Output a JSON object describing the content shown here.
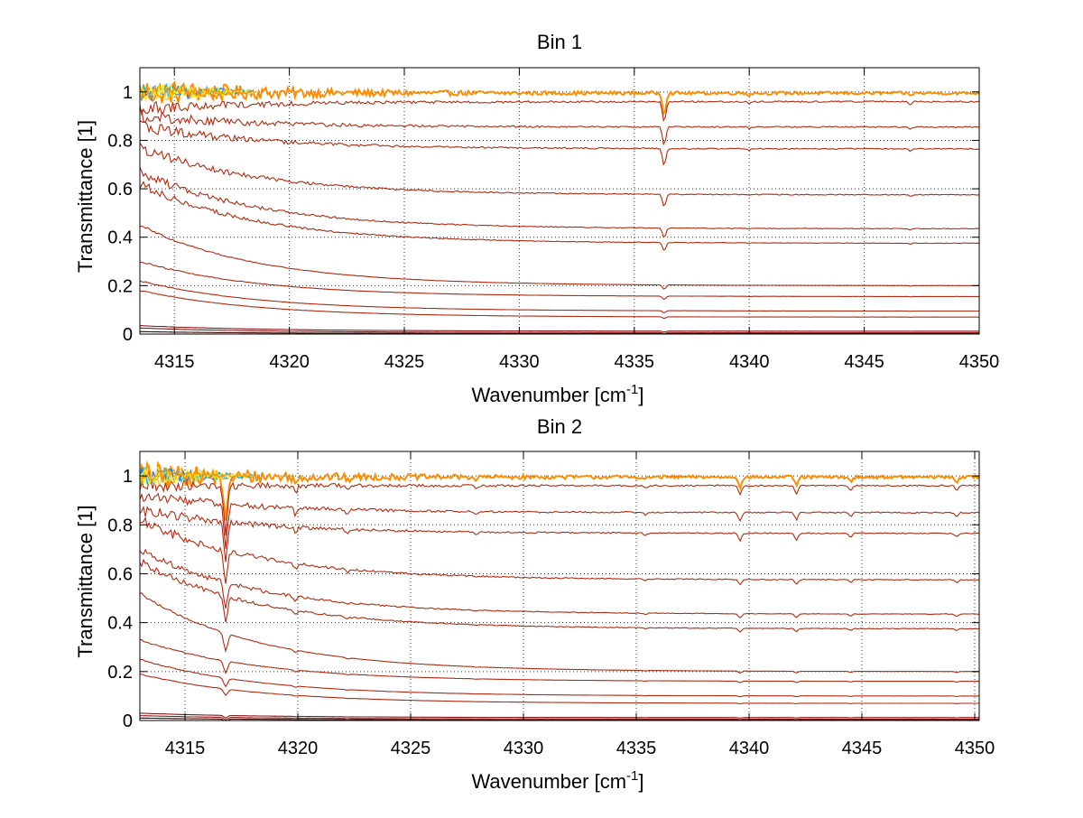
{
  "chart_data": [
    {
      "type": "line",
      "title": "Bin 1",
      "xlabel": "Wavenumber [cm",
      "xlabel_sup": "-1",
      "xlabel_end": "]",
      "ylabel": "Transmittance [1]",
      "xlim": [
        4313.5,
        4350
      ],
      "ylim": [
        0,
        1.1
      ],
      "xticks": [
        4315,
        4320,
        4325,
        4330,
        4335,
        4340,
        4345,
        4350
      ],
      "xtick_labels": [
        "4315",
        "4320",
        "4325",
        "4330",
        "4335",
        "4340",
        "4345",
        "4350"
      ],
      "yticks": [
        0,
        0.2,
        0.4,
        0.6,
        0.8,
        1
      ],
      "ytick_labels": [
        "0",
        "0.2",
        "0.4",
        "0.6",
        "0.8",
        "1"
      ],
      "grid": true,
      "dips": [
        {
          "x": 4336.3,
          "depth": 0.09,
          "width": 0.1
        },
        {
          "x": 4347.0,
          "depth": 0.012,
          "width": 0.08
        },
        {
          "x": 4340.0,
          "depth": 0.008,
          "width": 0.08
        }
      ],
      "series_levels": [
        {
          "start": 1.0,
          "end": 0.995,
          "color": "#ff8c00",
          "noise": 0.05
        },
        {
          "start": 0.93,
          "end": 0.96,
          "color": "#b22a10",
          "noise": 0.025
        },
        {
          "start": 0.9,
          "end": 0.855,
          "color": "#b22a10",
          "noise": 0.025
        },
        {
          "start": 0.86,
          "end": 0.765,
          "color": "#b22a10",
          "noise": 0.025
        },
        {
          "start": 0.77,
          "end": 0.575,
          "color": "#b22a10",
          "noise": 0.025
        },
        {
          "start": 0.67,
          "end": 0.435,
          "color": "#b22a10",
          "noise": 0.025
        },
        {
          "start": 0.62,
          "end": 0.375,
          "color": "#b22a10",
          "noise": 0.025
        },
        {
          "start": 0.45,
          "end": 0.2,
          "color": "#b22a10",
          "noise": 0.01
        },
        {
          "start": 0.3,
          "end": 0.155,
          "color": "#b22a10",
          "noise": 0.01
        },
        {
          "start": 0.22,
          "end": 0.095,
          "color": "#b22a10",
          "noise": 0.008
        },
        {
          "start": 0.18,
          "end": 0.07,
          "color": "#b22a10",
          "noise": 0.008
        },
        {
          "start": 0.035,
          "end": 0.012,
          "color": "#8b1a1a",
          "noise": 0.003
        },
        {
          "start": 0.025,
          "end": 0.006,
          "color": "#8b1a1a",
          "noise": 0.003
        },
        {
          "start": 0.01,
          "end": 0.002,
          "color": "#3b0a0a",
          "noise": 0.002
        }
      ],
      "marker_colors": [
        "#1f77ff",
        "#17becf",
        "#ffd700",
        "#ffeb3b",
        "#ff8c00"
      ]
    },
    {
      "type": "line",
      "title": "Bin 2",
      "xlabel": "Wavenumber [cm",
      "xlabel_sup": "-1",
      "xlabel_end": "]",
      "ylabel": "Transmittance [1]",
      "xlim": [
        4313.0,
        4350.2
      ],
      "ylim": [
        0,
        1.1
      ],
      "xticks": [
        4315,
        4320,
        4325,
        4330,
        4335,
        4340,
        4345,
        4350
      ],
      "xtick_labels": [
        "4315",
        "4320",
        "4325",
        "4330",
        "4335",
        "4340",
        "4345",
        "4350"
      ],
      "yticks": [
        0,
        0.2,
        0.4,
        0.6,
        0.8,
        1
      ],
      "ytick_labels": [
        "0",
        "0.2",
        "0.4",
        "0.6",
        "0.8",
        "1"
      ],
      "grid": true,
      "dips": [
        {
          "x": 4316.8,
          "depth": 0.2,
          "width": 0.12
        },
        {
          "x": 4319.9,
          "depth": 0.035,
          "width": 0.1
        },
        {
          "x": 4322.2,
          "depth": 0.02,
          "width": 0.1
        },
        {
          "x": 4339.6,
          "depth": 0.04,
          "width": 0.1
        },
        {
          "x": 4342.1,
          "depth": 0.035,
          "width": 0.1
        },
        {
          "x": 4344.5,
          "depth": 0.02,
          "width": 0.1
        },
        {
          "x": 4349.2,
          "depth": 0.02,
          "width": 0.1
        },
        {
          "x": 4335.4,
          "depth": 0.012,
          "width": 0.1
        },
        {
          "x": 4327.9,
          "depth": 0.01,
          "width": 0.1
        }
      ],
      "series_levels": [
        {
          "start": 1.0,
          "end": 0.995,
          "color": "#ff8c00",
          "noise": 0.05
        },
        {
          "start": 0.96,
          "end": 0.96,
          "color": "#b22a10",
          "noise": 0.025
        },
        {
          "start": 0.92,
          "end": 0.85,
          "color": "#b22a10",
          "noise": 0.025
        },
        {
          "start": 0.86,
          "end": 0.765,
          "color": "#b22a10",
          "noise": 0.025
        },
        {
          "start": 0.82,
          "end": 0.575,
          "color": "#b22a10",
          "noise": 0.025
        },
        {
          "start": 0.7,
          "end": 0.435,
          "color": "#b22a10",
          "noise": 0.025
        },
        {
          "start": 0.65,
          "end": 0.375,
          "color": "#b22a10",
          "noise": 0.025
        },
        {
          "start": 0.52,
          "end": 0.2,
          "color": "#b22a10",
          "noise": 0.01
        },
        {
          "start": 0.33,
          "end": 0.16,
          "color": "#b22a10",
          "noise": 0.01
        },
        {
          "start": 0.25,
          "end": 0.1,
          "color": "#b22a10",
          "noise": 0.008
        },
        {
          "start": 0.19,
          "end": 0.07,
          "color": "#b22a10",
          "noise": 0.008
        },
        {
          "start": 0.03,
          "end": 0.012,
          "color": "#8b1a1a",
          "noise": 0.003
        },
        {
          "start": 0.02,
          "end": 0.006,
          "color": "#8b1a1a",
          "noise": 0.003
        },
        {
          "start": 0.01,
          "end": 0.002,
          "color": "#3b0a0a",
          "noise": 0.002
        }
      ],
      "marker_colors": [
        "#1f77ff",
        "#17becf",
        "#ffd700",
        "#ffeb3b",
        "#ff8c00"
      ]
    }
  ]
}
